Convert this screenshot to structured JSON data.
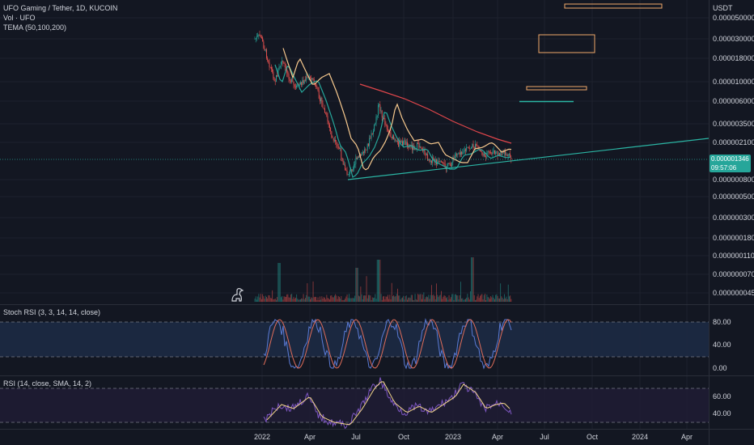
{
  "header": {
    "symbol_title": "UFO Gaming / Tether, 1D, KUCOIN",
    "vol_label": "Vol · UFO",
    "tema_label": "TEMA (50,100,200)",
    "quote_currency": "USDT"
  },
  "price_axis": {
    "ticks": [
      "0.000050000",
      "0.0000300000",
      "0.0000180000",
      "0.0000100000",
      "0.0000060000",
      "0.0000035000",
      "0.0000021000",
      "0.0000008000",
      "0.0000005000",
      "0.0000003000",
      "0.0000001800",
      "0.0000001100",
      "0.0000000700",
      "0.0000000450"
    ],
    "scale": "log"
  },
  "current_price": {
    "value": "0.000001346",
    "countdown": "09:57:06"
  },
  "stoch_rsi": {
    "label": "Stoch RSI (3, 3, 14, 14, close)",
    "ticks": [
      "80.00",
      "40.00",
      "0.00"
    ]
  },
  "rsi": {
    "label": "RSI (14, close, SMA, 14, 2)",
    "ticks": [
      "60.00",
      "40.00"
    ]
  },
  "time_axis": {
    "labels": [
      "2022",
      "Apr",
      "Jul",
      "Oct",
      "2023",
      "Apr",
      "Jul",
      "Oct",
      "2024",
      "Apr"
    ]
  },
  "colors": {
    "background": "#131722",
    "up": "#26a69a",
    "down": "#ef5350",
    "tema_fast": "#26a69a",
    "tema_mid": "#f7c98e",
    "tema_slow": "#e0464b",
    "trendline": "#2bb5a4",
    "rect_outline": "#f0a96a",
    "stoch_k": "#5b7bd5",
    "stoch_d": "#e06d5a",
    "rsi_line": "#7e57c2",
    "rsi_ma": "#f2d58a"
  },
  "icons": {
    "logo": "tradingview-dino-icon"
  }
}
